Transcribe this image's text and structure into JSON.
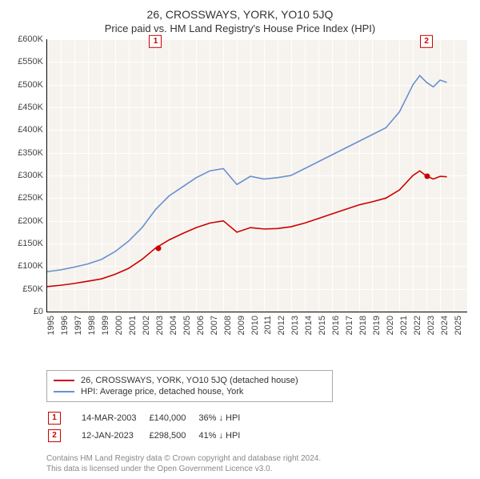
{
  "header": {
    "address": "26, CROSSWAYS, YORK, YO10 5JQ",
    "subtitle": "Price paid vs. HM Land Registry's House Price Index (HPI)"
  },
  "chart": {
    "type": "line",
    "background_color": "#f6f3ee",
    "grid_color": "#ffffff",
    "axis_color": "#000000",
    "tick_fontsize": 11,
    "xlim": [
      1995,
      2026
    ],
    "ylim": [
      0,
      600000
    ],
    "ytick_step": 50000,
    "yticks": [
      "£0",
      "£50K",
      "£100K",
      "£150K",
      "£200K",
      "£250K",
      "£300K",
      "£350K",
      "£400K",
      "£450K",
      "£500K",
      "£550K",
      "£600K"
    ],
    "xticks": [
      1995,
      1996,
      1997,
      1998,
      1999,
      2000,
      2001,
      2002,
      2003,
      2004,
      2005,
      2006,
      2007,
      2008,
      2009,
      2010,
      2011,
      2012,
      2013,
      2014,
      2015,
      2016,
      2017,
      2018,
      2019,
      2020,
      2021,
      2022,
      2023,
      2024,
      2025
    ],
    "series": [
      {
        "id": "price_paid",
        "label": "26, CROSSWAYS, YORK, YO10 5JQ (detached house)",
        "color": "#cc0000",
        "line_width": 1.8,
        "x": [
          1995,
          1996,
          1997,
          1998,
          1999,
          2000,
          2001,
          2002,
          2003,
          2004,
          2005,
          2006,
          2007,
          2008,
          2009,
          2010,
          2011,
          2012,
          2013,
          2014,
          2015,
          2016,
          2017,
          2018,
          2019,
          2020,
          2021,
          2022,
          2022.5,
          2023,
          2023.5,
          2024,
          2024.5
        ],
        "y": [
          55000,
          58000,
          62000,
          67000,
          72000,
          82000,
          95000,
          115000,
          140000,
          158000,
          172000,
          185000,
          195000,
          200000,
          175000,
          185000,
          182000,
          183000,
          187000,
          195000,
          205000,
          215000,
          225000,
          235000,
          242000,
          250000,
          268000,
          300000,
          310000,
          298500,
          292000,
          298000,
          297000
        ]
      },
      {
        "id": "hpi",
        "label": "HPI: Average price, detached house, York",
        "color": "#6a8fd0",
        "line_width": 1.5,
        "x": [
          1995,
          1996,
          1997,
          1998,
          1999,
          2000,
          2001,
          2002,
          2003,
          2004,
          2005,
          2006,
          2007,
          2008,
          2009,
          2010,
          2011,
          2012,
          2013,
          2014,
          2015,
          2016,
          2017,
          2018,
          2019,
          2020,
          2021,
          2022,
          2022.5,
          2023,
          2023.5,
          2024,
          2024.5
        ],
        "y": [
          88000,
          92000,
          98000,
          105000,
          115000,
          132000,
          155000,
          185000,
          225000,
          255000,
          275000,
          295000,
          310000,
          315000,
          280000,
          298000,
          292000,
          295000,
          300000,
          315000,
          330000,
          345000,
          360000,
          375000,
          390000,
          405000,
          440000,
          500000,
          520000,
          505000,
          495000,
          510000,
          505000
        ]
      }
    ],
    "markers": [
      {
        "n": "1",
        "x": 2003.2,
        "y": 140000,
        "year_col": 2003,
        "color": "#cc0000"
      },
      {
        "n": "2",
        "x": 2023.03,
        "y": 298500,
        "year_col": 2023,
        "color": "#cc0000"
      }
    ]
  },
  "legend": {
    "items": [
      {
        "color": "#cc0000",
        "label": "26, CROSSWAYS, YORK, YO10 5JQ (detached house)"
      },
      {
        "color": "#6a8fd0",
        "label": "HPI: Average price, detached house, York"
      }
    ]
  },
  "sales": [
    {
      "n": "1",
      "date": "14-MAR-2003",
      "price": "£140,000",
      "delta": "36% ↓ HPI"
    },
    {
      "n": "2",
      "date": "12-JAN-2023",
      "price": "£298,500",
      "delta": "41% ↓ HPI"
    }
  ],
  "footnote": {
    "line1": "Contains HM Land Registry data © Crown copyright and database right 2024.",
    "line2": "This data is licensed under the Open Government Licence v3.0."
  }
}
